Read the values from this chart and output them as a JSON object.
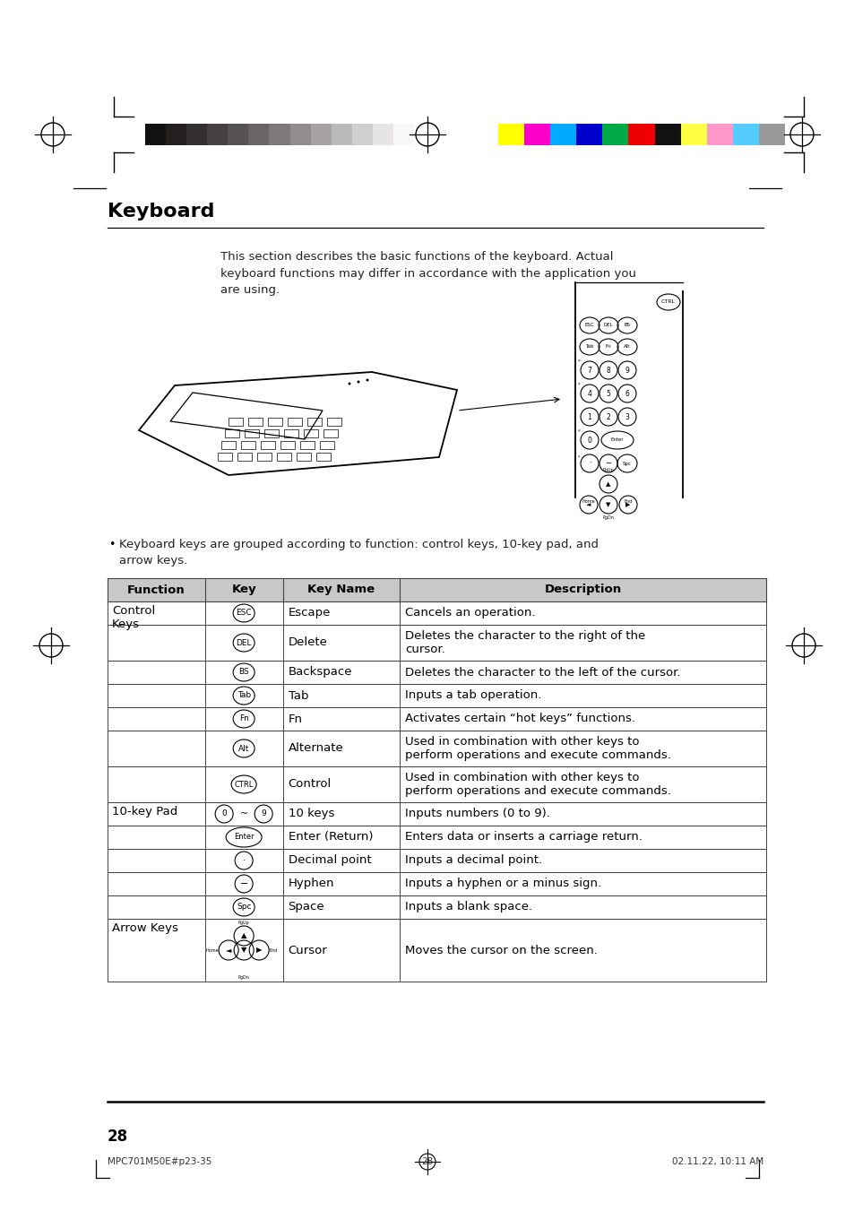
{
  "title": "Keyboard",
  "subtitle": "This section describes the basic functions of the keyboard. Actual\nkeyboard functions may differ in accordance with the application you\nare using.",
  "bullet_text": "Keyboard keys are grouped according to function: control keys, 10-key pad, and\narrow keys.",
  "table_headers": [
    "Function",
    "Key",
    "Key Name",
    "Description"
  ],
  "table_rows": [
    [
      "Control\nKeys",
      "ESC",
      "Escape",
      "Cancels an operation."
    ],
    [
      "",
      "DEL",
      "Delete",
      "Deletes the character to the right of the\ncursor."
    ],
    [
      "",
      "BS",
      "Backspace",
      "Deletes the character to the left of the cursor."
    ],
    [
      "",
      "Tab",
      "Tab",
      "Inputs a tab operation."
    ],
    [
      "",
      "Fn",
      "Fn",
      "Activates certain “hot keys” functions."
    ],
    [
      "",
      "Alt",
      "Alternate",
      "Used in combination with other keys to\nperform operations and execute commands."
    ],
    [
      "",
      "CTRL",
      "Control",
      "Used in combination with other keys to\nperform operations and execute commands."
    ],
    [
      "10-key Pad",
      "0~9",
      "10 keys",
      "Inputs numbers (0 to 9)."
    ],
    [
      "",
      "Enter",
      "Enter (Return)",
      "Enters data or inserts a carriage return."
    ],
    [
      "",
      "·",
      "Decimal point",
      "Inputs a decimal point."
    ],
    [
      "",
      "−",
      "Hyphen",
      "Inputs a hyphen or a minus sign."
    ],
    [
      "",
      "Spc",
      "Space",
      "Inputs a blank space."
    ],
    [
      "Arrow Keys",
      "[arrow]",
      "Cursor",
      "Moves the cursor on the screen."
    ]
  ],
  "header_bg": "#c8c8c8",
  "border_color": "#555555",
  "page_number": "28",
  "footer_left": "MPC701M50E#p23-35",
  "footer_center": "28",
  "footer_right": "02.11.22, 10:11 AM",
  "color_bar_left": [
    "#111111",
    "#241f1f",
    "#352f2f",
    "#464040",
    "#585252",
    "#6a6464",
    "#7e7878",
    "#928d8d",
    "#a7a3a3",
    "#bcb9b9",
    "#d1cece",
    "#e6e4e4",
    "#f8f8f8"
  ],
  "color_bar_right": [
    "#ffff00",
    "#ff00cc",
    "#00aaff",
    "#0000cc",
    "#00aa44",
    "#ee0000",
    "#111111",
    "#ffff44",
    "#ff99cc",
    "#55ccff",
    "#999999"
  ]
}
